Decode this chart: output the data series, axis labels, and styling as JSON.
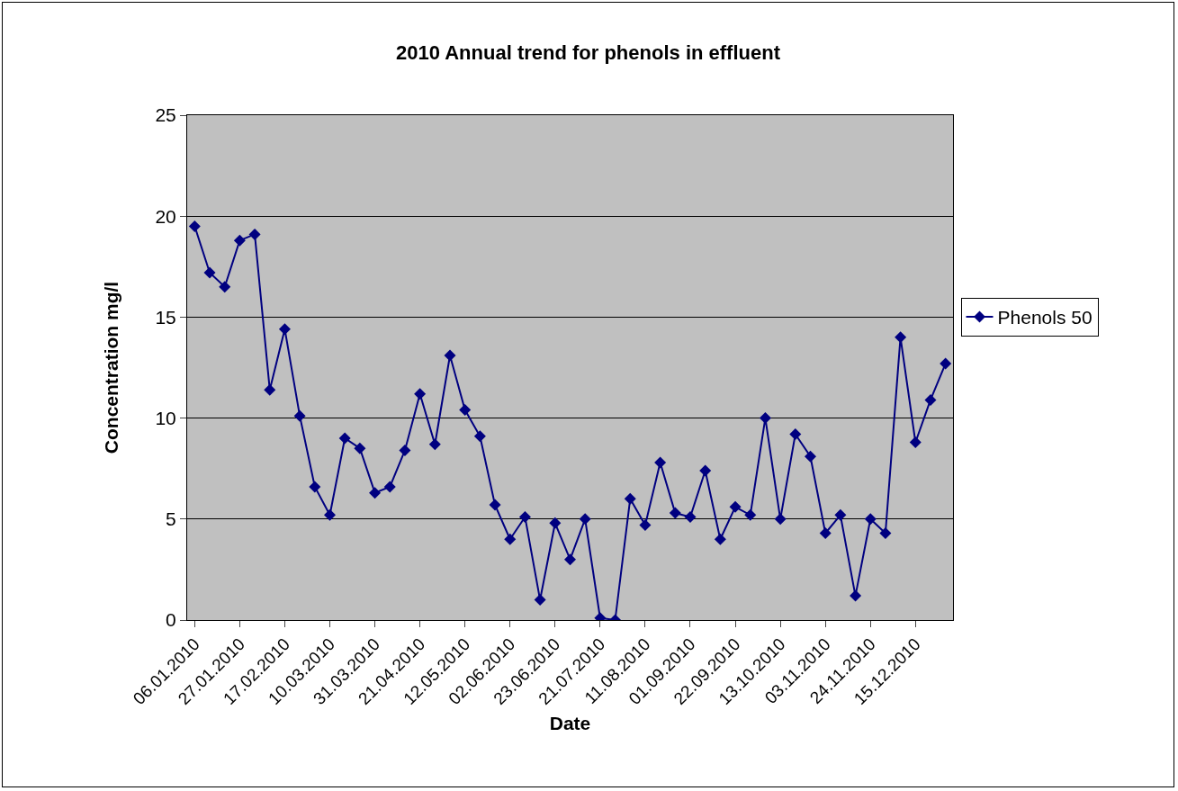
{
  "chart_data": {
    "type": "line",
    "title": "2010 Annual trend for phenols in effluent",
    "xlabel": "Date",
    "ylabel": "Concentration mg/l",
    "categories": [
      "06.01.2010",
      null,
      null,
      "27.01.2010",
      null,
      null,
      "17.02.2010",
      null,
      null,
      "10.03.2010",
      null,
      null,
      "31.03.2010",
      null,
      null,
      "21.04.2010",
      null,
      null,
      "12.05.2010",
      null,
      null,
      "02.06.2010",
      null,
      null,
      "23.06.2010",
      null,
      null,
      "21.07.2010",
      null,
      null,
      "11.08.2010",
      null,
      null,
      "01.09.2010",
      null,
      null,
      "22.09.2010",
      null,
      null,
      "13.10.2010",
      null,
      null,
      "03.11.2010",
      null,
      null,
      "24.11.2010",
      null,
      null,
      "15.12.2010",
      null,
      null
    ],
    "series": [
      {
        "name": "Phenols 50",
        "color": "#000080",
        "values": [
          19.5,
          17.2,
          16.5,
          18.8,
          19.1,
          11.4,
          14.4,
          10.1,
          6.6,
          5.2,
          9.0,
          8.5,
          6.3,
          6.6,
          8.4,
          11.2,
          8.7,
          13.1,
          10.4,
          9.1,
          5.7,
          4.0,
          5.1,
          1.0,
          4.8,
          3.0,
          5.0,
          0.1,
          0.0,
          6.0,
          4.7,
          7.8,
          5.3,
          5.1,
          7.4,
          4.0,
          5.6,
          5.2,
          10.0,
          5.0,
          9.2,
          8.1,
          4.3,
          5.2,
          1.2,
          5.0,
          4.3,
          14.0,
          8.8,
          10.9,
          12.7
        ]
      }
    ],
    "ylim": [
      0,
      25
    ],
    "yticks": [
      0,
      5,
      10,
      15,
      20,
      25
    ],
    "grid": "y",
    "legend": "right",
    "marker": "diamond",
    "line_style": "solid"
  }
}
